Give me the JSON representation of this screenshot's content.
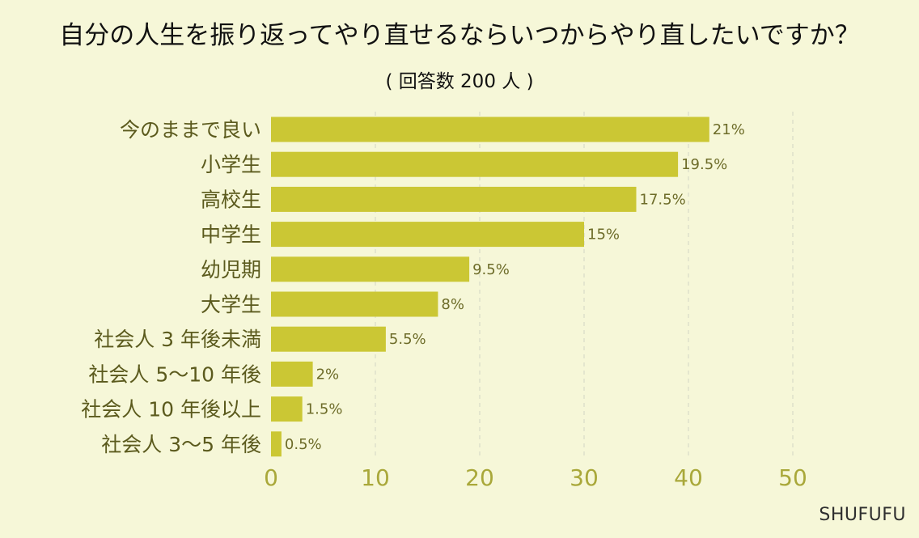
{
  "title": "自分の人生を振り返ってやり直せるならいつからやり直したいですか？",
  "subtitle": "( 回答数 200 人 )",
  "brand": "SHUFUFU",
  "colors": {
    "background": "#f6f7d8",
    "bar": "#cbc734",
    "grid": "#d9dbc7",
    "axis_ticks": "#a9a83a",
    "category_text": "#5b5a1d",
    "value_text": "#6d6c29"
  },
  "chart_data": {
    "type": "bar",
    "orientation": "horizontal",
    "categories": [
      "今のままで良い",
      "小学生",
      "高校生",
      "中学生",
      "幼児期",
      "大学生",
      "社会人 3 年後未満",
      "社会人 5〜10 年後",
      "社会人 10 年後以上",
      "社会人 3〜5 年後"
    ],
    "values": [
      42,
      39,
      35,
      30,
      19,
      16,
      11,
      4,
      3,
      1
    ],
    "value_labels": [
      "21%",
      "19.5%",
      "17.5%",
      "15%",
      "9.5%",
      "8%",
      "5.5%",
      "2%",
      "1.5%",
      "0.5%"
    ],
    "xlim": [
      0,
      50
    ],
    "xticks": [
      "0",
      "10",
      "20",
      "30",
      "40",
      "50"
    ],
    "grid": "vertical dashed",
    "legend": "none"
  }
}
